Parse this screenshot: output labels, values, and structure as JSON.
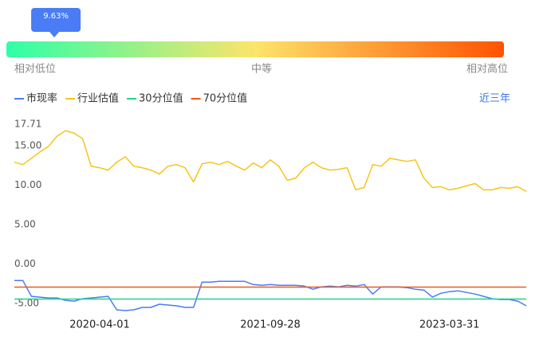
{
  "gauge": {
    "value": 9.63,
    "value_label": "9.63%",
    "labels": [
      "相对低位",
      "中等",
      "相对高位"
    ]
  },
  "period": "近三年",
  "chart_data": {
    "type": "line",
    "categories": [
      null,
      null,
      null,
      null,
      null,
      null,
      null,
      null,
      null,
      null,
      "2020-04-01",
      null,
      null,
      null,
      null,
      null,
      null,
      null,
      null,
      null,
      null,
      null,
      null,
      null,
      null,
      null,
      null,
      null,
      null,
      null,
      "2021-09-28",
      null,
      null,
      null,
      null,
      null,
      null,
      null,
      null,
      null,
      null,
      null,
      null,
      null,
      null,
      null,
      null,
      null,
      null,
      null,
      null,
      "2023-03-31",
      null,
      null,
      null,
      null,
      null,
      null,
      null,
      null,
      null
    ],
    "series": [
      {
        "name": "市现率",
        "color": "#4a7cf6",
        "values": [
          -1.5,
          -1.5,
          -3.5,
          -3.6,
          -3.7,
          -3.7,
          -4.0,
          -4.1,
          -3.8,
          -3.7,
          -3.6,
          -3.5,
          -5.2,
          -5.3,
          -5.2,
          -4.9,
          -4.9,
          -4.5,
          -4.6,
          -4.7,
          -4.9,
          -4.9,
          -1.7,
          -1.7,
          -1.6,
          -1.6,
          -1.6,
          -1.6,
          -2.0,
          -2.1,
          -2.0,
          -2.1,
          -2.1,
          -2.1,
          -2.2,
          -2.6,
          -2.3,
          -2.2,
          -2.3,
          -2.1,
          -2.2,
          -2.0,
          -3.2,
          -2.3,
          -2.3,
          -2.3,
          -2.4,
          -2.6,
          -2.7,
          -3.6,
          -3.1,
          -2.9,
          -2.8,
          -3.0,
          -3.2,
          -3.5,
          -3.8,
          -3.9,
          -3.9,
          -4.1,
          -4.7
        ]
      },
      {
        "name": "行业估值",
        "color": "#f5c518",
        "values": [
          13.5,
          13.2,
          14.0,
          14.8,
          15.5,
          16.8,
          17.5,
          17.2,
          16.5,
          13.0,
          12.8,
          12.5,
          13.5,
          14.2,
          13.0,
          12.8,
          12.5,
          12.0,
          13.0,
          13.2,
          12.8,
          11.0,
          13.3,
          13.5,
          13.2,
          13.6,
          13.0,
          12.5,
          13.4,
          12.8,
          13.8,
          13.0,
          11.2,
          11.5,
          12.8,
          13.5,
          12.8,
          12.5,
          12.6,
          12.8,
          10.0,
          10.3,
          13.2,
          13.0,
          14.0,
          13.8,
          13.6,
          13.8,
          11.5,
          10.3,
          10.4,
          10.0,
          10.2,
          10.5,
          10.8,
          10.0,
          10.0,
          10.3,
          10.2,
          10.4,
          9.8
        ]
      },
      {
        "name": "30分位值",
        "color": "#1fd48a",
        "value": -3.84
      },
      {
        "name": "70分位值",
        "color": "#f0581f",
        "value": -2.32
      }
    ],
    "ylim": [
      -5,
      17.71
    ],
    "yticks": [
      {
        "value": -5,
        "label": "-5.00"
      },
      {
        "value": 0,
        "label": "0.00"
      },
      {
        "value": 5,
        "label": "5.00"
      },
      {
        "value": 10,
        "label": "10.00"
      },
      {
        "value": 15,
        "label": "15.00"
      },
      17.71
    ],
    "grid": false
  }
}
